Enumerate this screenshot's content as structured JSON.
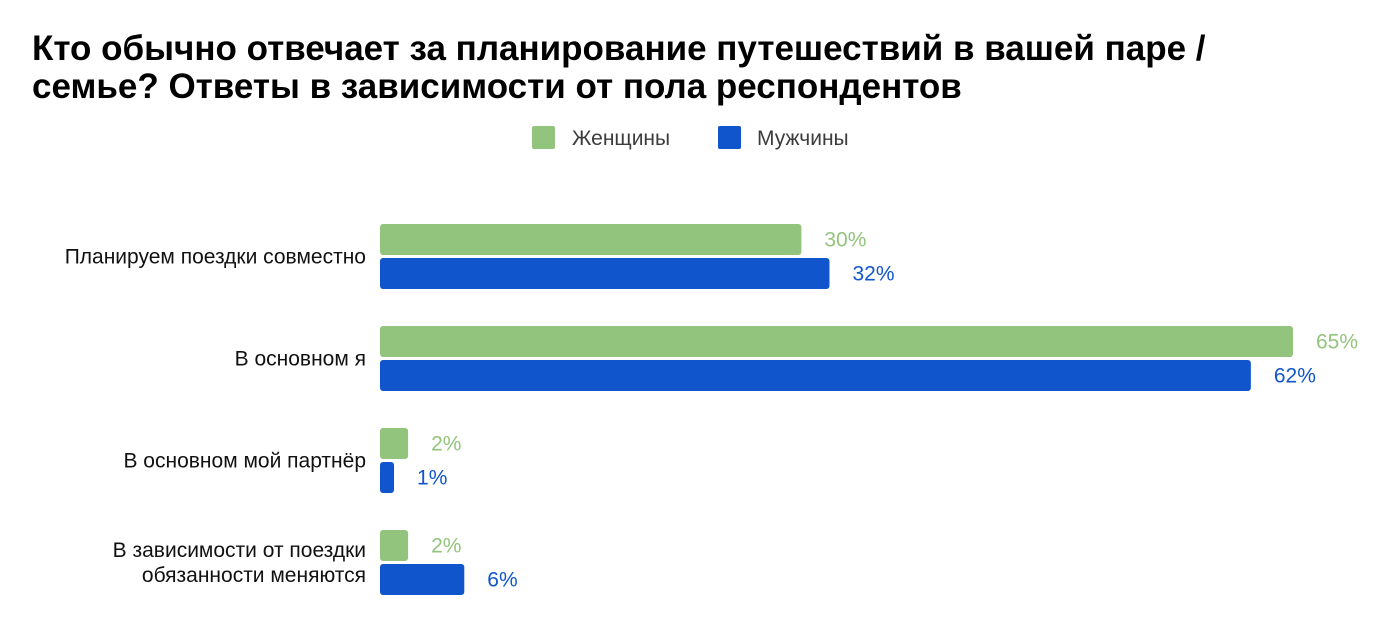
{
  "title_lines": [
    "Кто обычно отвечает за планирование путешествий в вашей паре /",
    "семье? Ответы в зависимости от пола респондентов"
  ],
  "chart_data": {
    "type": "bar",
    "orientation": "horizontal",
    "title": "Кто обычно отвечает за планирование путешествий в вашей паре / семье? Ответы в зависимости от пола респондентов",
    "categories": [
      [
        "Планируем поездки совместно"
      ],
      [
        "В основном я"
      ],
      [
        "В основном мой партнёр"
      ],
      [
        "В зависимости от поездки",
        "обязанности меняются"
      ]
    ],
    "series": [
      {
        "name": "Женщины",
        "color": "#93c47d",
        "values": [
          30,
          65,
          2,
          2
        ]
      },
      {
        "name": "Мужчины",
        "color": "#1155cc",
        "values": [
          32,
          62,
          1,
          6
        ]
      }
    ],
    "value_suffix": "%",
    "xlim": [
      0,
      65
    ],
    "legend_position": "top",
    "grid": false,
    "xlabel": "",
    "ylabel": ""
  }
}
